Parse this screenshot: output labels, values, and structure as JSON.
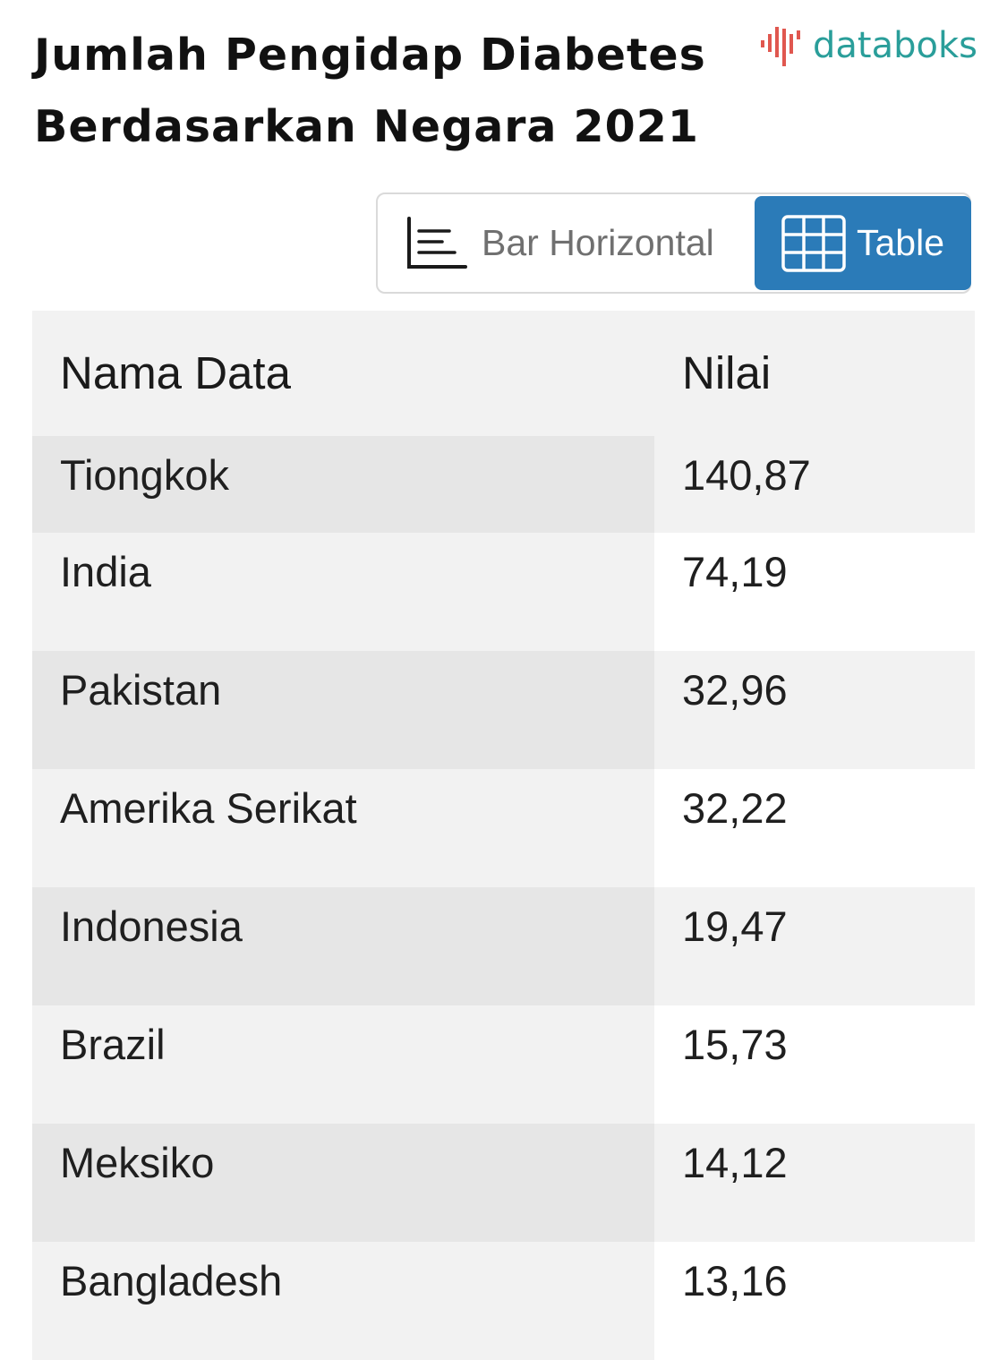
{
  "header": {
    "title_line1": "Jumlah Pengidap Diabetes",
    "title_line2": "Berdasarkan Negara 2021",
    "logo_text": "databoks",
    "logo_colors": {
      "bars": "#e0574f",
      "text": "#2a9e9a"
    }
  },
  "view_toggle": {
    "bar_label": "Bar Horizontal",
    "table_label": "Table",
    "active": "Table",
    "active_color": "#2b7bb8"
  },
  "table": {
    "col_name": "Nama Data",
    "col_value": "Nilai",
    "rows": [
      {
        "name": "Tiongkok",
        "value": "140,87"
      },
      {
        "name": "India",
        "value": "74,19"
      },
      {
        "name": "Pakistan",
        "value": "32,96"
      },
      {
        "name": "Amerika Serikat",
        "value": "32,22"
      },
      {
        "name": "Indonesia",
        "value": "19,47"
      },
      {
        "name": "Brazil",
        "value": "15,73"
      },
      {
        "name": "Meksiko",
        "value": "14,12"
      },
      {
        "name": "Bangladesh",
        "value": "13,16"
      }
    ]
  },
  "chart_data": {
    "type": "table",
    "title": "Jumlah Pengidap Diabetes Berdasarkan Negara 2021",
    "columns": [
      "Nama Data",
      "Nilai"
    ],
    "categories": [
      "Tiongkok",
      "India",
      "Pakistan",
      "Amerika Serikat",
      "Indonesia",
      "Brazil",
      "Meksiko",
      "Bangladesh"
    ],
    "values": [
      140.87,
      74.19,
      32.96,
      32.22,
      19.47,
      15.73,
      14.12,
      13.16
    ]
  }
}
